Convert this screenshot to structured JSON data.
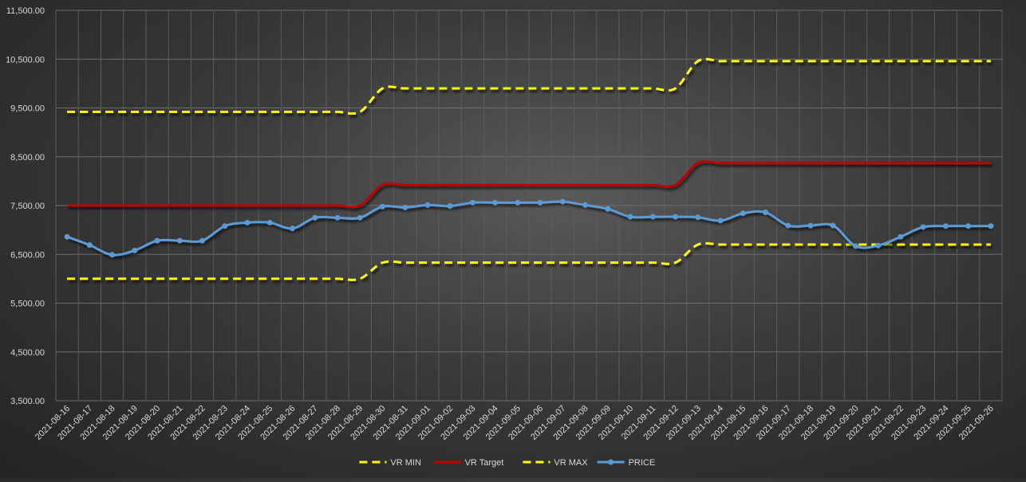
{
  "chart_data": {
    "type": "line",
    "title": "",
    "xlabel": "",
    "ylabel": "",
    "ylim": [
      3500,
      11500
    ],
    "y_ticks": [
      3500,
      4500,
      5500,
      6500,
      7500,
      8500,
      9500,
      10500,
      11500
    ],
    "y_tick_labels": [
      "3,500.00",
      "4,500.00",
      "5,500.00",
      "6,500.00",
      "7,500.00",
      "8,500.00",
      "9,500.00",
      "10,500.00",
      "11,500.00"
    ],
    "grid": true,
    "legend_position": "bottom",
    "categories": [
      "2021-08-16",
      "2021-08-17",
      "2021-08-18",
      "2021-08-19",
      "2021-08-20",
      "2021-08-21",
      "2021-08-22",
      "2021-08-23",
      "2021-08-24",
      "2021-08-25",
      "2021-08-26",
      "2021-08-27",
      "2021-08-28",
      "2021-08-29",
      "2021-08-30",
      "2021-08-31",
      "2021-09-01",
      "2021-09-02",
      "2021-09-03",
      "2021-09-04",
      "2021-09-05",
      "2021-09-06",
      "2021-09-07",
      "2021-09-08",
      "2021-09-09",
      "2021-09-10",
      "2021-09-11",
      "2021-09-12",
      "2021-09-13",
      "2021-09-14",
      "2021-09-15",
      "2021-09-16",
      "2021-09-17",
      "2021-09-18",
      "2021-09-19",
      "2021-09-20",
      "2021-09-21",
      "2021-09-22",
      "2021-09-23",
      "2021-09-24",
      "2021-09-25",
      "2021-09-26"
    ],
    "series": [
      {
        "name": "VR MIN",
        "color": "#ffff00",
        "style": "dashed",
        "marker": false,
        "values": [
          6000,
          6000,
          6000,
          6000,
          6000,
          6000,
          6000,
          6000,
          6000,
          6000,
          6000,
          6000,
          6000,
          6000,
          6330,
          6330,
          6330,
          6330,
          6330,
          6330,
          6330,
          6330,
          6330,
          6330,
          6330,
          6330,
          6330,
          6330,
          6700,
          6700,
          6700,
          6700,
          6700,
          6700,
          6700,
          6700,
          6700,
          6700,
          6700,
          6700,
          6700,
          6700
        ]
      },
      {
        "name": "VR Target",
        "color": "#c00000",
        "style": "solid",
        "marker": false,
        "values": [
          7500,
          7500,
          7500,
          7500,
          7500,
          7500,
          7500,
          7500,
          7500,
          7500,
          7500,
          7500,
          7500,
          7500,
          7920,
          7920,
          7920,
          7920,
          7920,
          7920,
          7920,
          7920,
          7920,
          7920,
          7920,
          7920,
          7920,
          7920,
          8370,
          8370,
          8370,
          8370,
          8370,
          8370,
          8370,
          8370,
          8370,
          8370,
          8370,
          8370,
          8370,
          8370
        ]
      },
      {
        "name": "VR MAX",
        "color": "#ffff00",
        "style": "dashed",
        "marker": false,
        "values": [
          9420,
          9420,
          9420,
          9420,
          9420,
          9420,
          9420,
          9420,
          9420,
          9420,
          9420,
          9420,
          9420,
          9420,
          9900,
          9900,
          9900,
          9900,
          9900,
          9900,
          9900,
          9900,
          9900,
          9900,
          9900,
          9900,
          9900,
          9900,
          10460,
          10460,
          10460,
          10460,
          10460,
          10460,
          10460,
          10460,
          10460,
          10460,
          10460,
          10460,
          10460,
          10460
        ]
      },
      {
        "name": "PRICE",
        "color": "#5b9bd5",
        "style": "solid",
        "marker": true,
        "values": [
          6860,
          6690,
          6490,
          6580,
          6780,
          6780,
          6780,
          7080,
          7150,
          7150,
          7030,
          7250,
          7250,
          7250,
          7480,
          7460,
          7510,
          7490,
          7560,
          7560,
          7560,
          7560,
          7580,
          7510,
          7430,
          7270,
          7270,
          7270,
          7260,
          7190,
          7340,
          7360,
          7090,
          7090,
          7090,
          6670,
          6680,
          6860,
          7060,
          7080,
          7080,
          7080
        ]
      }
    ]
  }
}
